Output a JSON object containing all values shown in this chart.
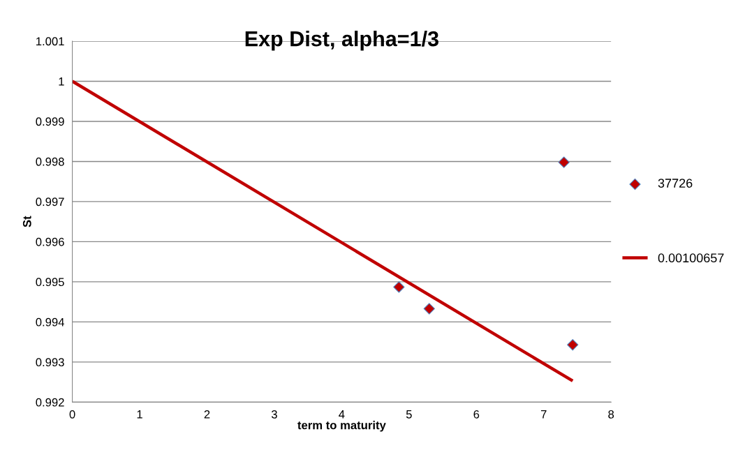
{
  "chart_data": {
    "type": "scatter",
    "title": "Exp Dist, alpha=1/3",
    "xlabel": "term to maturity",
    "ylabel": "St",
    "series": [
      {
        "name": "37726",
        "color": "#c00000",
        "x": [
          4.85,
          5.3,
          7.3,
          7.43
        ],
        "values": [
          0.99487,
          0.99433,
          0.99798,
          0.99343
        ],
        "marker": "diamond"
      },
      {
        "name": "0.00100657",
        "type": "line",
        "color": "#c00000",
        "x": [
          0,
          7.43
        ],
        "values": [
          1.0,
          0.99253
        ]
      }
    ],
    "xlim": [
      0,
      8
    ],
    "xticks": [
      0,
      1,
      2,
      3,
      4,
      5,
      6,
      7,
      8
    ],
    "ylim": [
      0.992,
      1.001
    ],
    "yticks": [
      {
        "value": 0.992,
        "label": "0.992"
      },
      {
        "value": 0.993,
        "label": "0.993"
      },
      {
        "value": 0.994,
        "label": "0.994"
      },
      {
        "value": 0.995,
        "label": "0.995"
      },
      {
        "value": 0.996,
        "label": "0.996"
      },
      {
        "value": 0.997,
        "label": "0.997"
      },
      {
        "value": 0.998,
        "label": "0.998"
      },
      {
        "value": 0.999,
        "label": "0.999"
      },
      {
        "value": 1,
        "label": "1"
      },
      {
        "value": 1.001,
        "label": "1.001"
      }
    ],
    "grid": "y",
    "legend": "right"
  }
}
